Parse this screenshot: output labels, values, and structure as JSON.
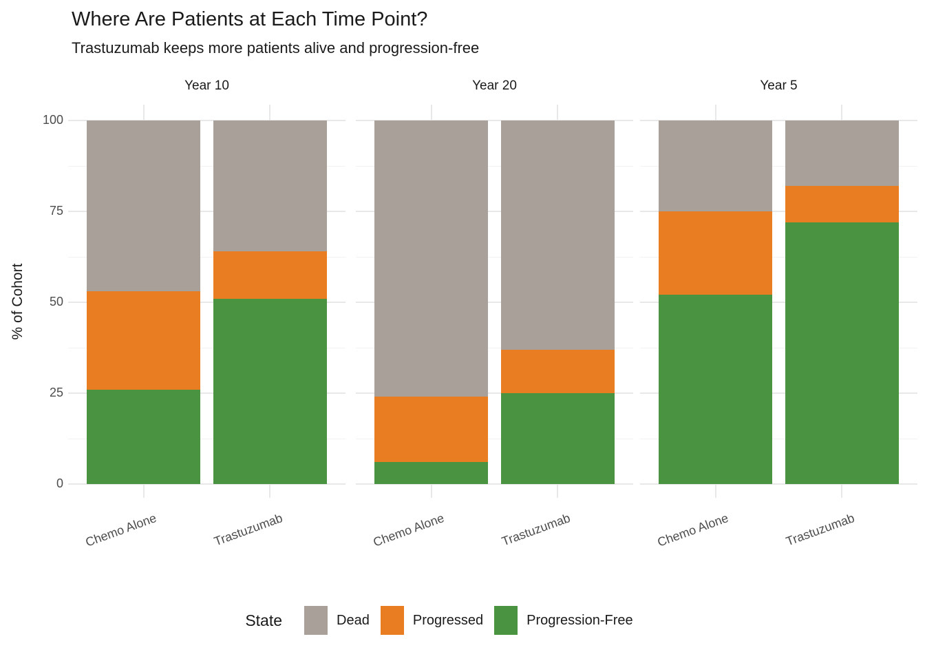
{
  "header": {
    "title": "Where Are Patients at Each Time Point?",
    "subtitle": "Trastuzumab keeps more patients alive and progression-free"
  },
  "chart_data": {
    "type": "bar",
    "variant": "stacked-percent-faceted",
    "title": "Where Are Patients at Each Time Point?",
    "subtitle": "Trastuzumab keeps more patients alive and progression-free",
    "ylabel": "% of Cohort",
    "xlabel": "",
    "ylim": [
      0,
      100
    ],
    "yticks": [
      "0",
      "25",
      "50",
      "75",
      "100"
    ],
    "ytick_values": [
      0,
      25,
      50,
      75,
      100
    ],
    "grid": {
      "major_color": "#E8E8E8",
      "minor_color": "#F2F2F2",
      "minor_values": [
        12.5,
        37.5,
        62.5,
        87.5
      ]
    },
    "stack_order_bottom_to_top": [
      "Progression-Free",
      "Progressed",
      "Dead"
    ],
    "colors": {
      "Progression-Free": "#4A9340",
      "Progressed": "#E87D22",
      "Dead": "#A9A099"
    },
    "categories": [
      "Chemo Alone",
      "Trastuzumab"
    ],
    "facets": [
      {
        "label": "Year 10",
        "series": [
          {
            "name": "Progression-Free",
            "values": [
              26,
              51
            ]
          },
          {
            "name": "Progressed",
            "values": [
              27,
              13
            ]
          },
          {
            "name": "Dead",
            "values": [
              47,
              36
            ]
          }
        ]
      },
      {
        "label": "Year 20",
        "series": [
          {
            "name": "Progression-Free",
            "values": [
              6,
              25
            ]
          },
          {
            "name": "Progressed",
            "values": [
              18,
              12
            ]
          },
          {
            "name": "Dead",
            "values": [
              76,
              63
            ]
          }
        ]
      },
      {
        "label": "Year 5",
        "series": [
          {
            "name": "Progression-Free",
            "values": [
              52,
              72
            ]
          },
          {
            "name": "Progressed",
            "values": [
              23,
              10
            ]
          },
          {
            "name": "Dead",
            "values": [
              25,
              18
            ]
          }
        ]
      }
    ],
    "legend": {
      "title": "State",
      "position": "bottom",
      "items": [
        {
          "label": "Dead",
          "color": "#A9A099"
        },
        {
          "label": "Progressed",
          "color": "#E87D22"
        },
        {
          "label": "Progression-Free",
          "color": "#4A9340"
        }
      ]
    }
  }
}
